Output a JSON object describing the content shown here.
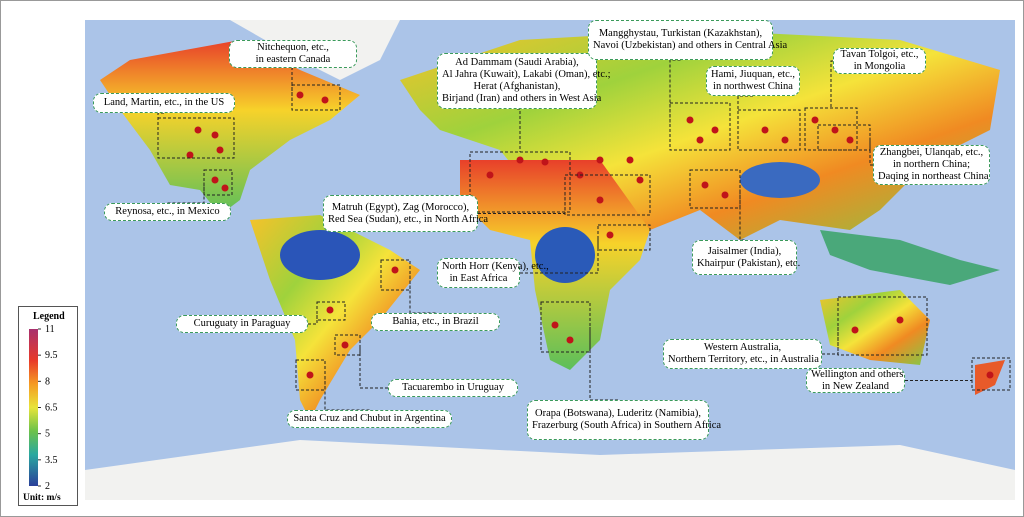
{
  "labels": [
    {
      "lines": [
        "Nitchequon, etc.,",
        "in eastern Canada"
      ]
    },
    {
      "lines": [
        "Land, Martin, etc., in the US"
      ]
    },
    {
      "lines": [
        "Reynosa, etc., in Mexico"
      ]
    },
    {
      "lines": [
        "Ad Dammam (Saudi Arabia),",
        "Al Jahra (Kuwait), Lakabi (Oman), etc.;",
        "Herat (Afghanistan),",
        "Birjand (Iran) and others in West Asia"
      ]
    },
    {
      "lines": [
        "Mangghystau, Turkistan (Kazakhstan),",
        "Navoi (Uzbekistan) and others in Central Asia"
      ]
    },
    {
      "lines": [
        "Hami, Jiuquan, etc.,",
        "in northwest China"
      ]
    },
    {
      "lines": [
        "Tavan Tolgoi, etc.,",
        "in Mongolia"
      ]
    },
    {
      "lines": [
        "Zhangbei, Ulanqab, etc.,",
        "in northern China;",
        "Daqing in northeast China"
      ]
    },
    {
      "lines": [
        "Matruh (Egypt), Zag (Morocco),",
        "Red Sea (Sudan), etc., in North Africa"
      ]
    },
    {
      "lines": [
        "Jaisalmer (India),",
        "Khairpur (Pakistan), etc."
      ]
    },
    {
      "lines": [
        "North Horr (Kenya), etc.,",
        "in East Africa"
      ]
    },
    {
      "lines": [
        "Bahia, etc., in Brazil"
      ]
    },
    {
      "lines": [
        "Curuguaty in  Paraguay"
      ]
    },
    {
      "lines": [
        "Tacuarembo in Uruguay"
      ]
    },
    {
      "lines": [
        "Santa Cruz and Chubut in Argentina"
      ]
    },
    {
      "lines": [
        "Orapa (Botswana), Luderitz (Namibia),",
        "Frazerburg (South Africa) in Southern Africa"
      ]
    },
    {
      "lines": [
        "Western Australia,",
        "Northern Territory, etc., in Australia"
      ]
    },
    {
      "lines": [
        "Wellington and others",
        "in New Zealand"
      ]
    }
  ],
  "legend": {
    "title": "Legend",
    "ticks": [
      11,
      9.5,
      8,
      6.5,
      5,
      3.5,
      2
    ],
    "unit": "Unit: m/s"
  }
}
